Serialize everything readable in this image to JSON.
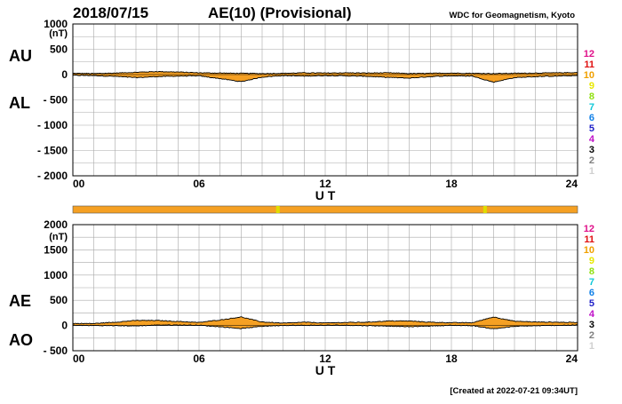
{
  "header": {
    "date": "2018/07/15",
    "title": "AE(10) (Provisional)",
    "source": "WDC for Geomagnetism, Kyoto"
  },
  "footer": {
    "created": "[Created at 2022-07-21 09:34UT]"
  },
  "colors": {
    "fill": "#f5a023",
    "line": "#000000",
    "grid": "#a8a8a8",
    "status_bar": "#f5a023",
    "status_marks": "#dddd00"
  },
  "station_legend": [
    {
      "label": "12",
      "color": "#e0108a"
    },
    {
      "label": "11",
      "color": "#e01010"
    },
    {
      "label": "10",
      "color": "#f0a000"
    },
    {
      "label": "9",
      "color": "#e8e800"
    },
    {
      "label": "8",
      "color": "#90e010"
    },
    {
      "label": "7",
      "color": "#10c8d8"
    },
    {
      "label": "6",
      "color": "#1080e8"
    },
    {
      "label": "5",
      "color": "#2020c8"
    },
    {
      "label": "4",
      "color": "#c010c8"
    },
    {
      "label": "3",
      "color": "#000000"
    },
    {
      "label": "2",
      "color": "#808080"
    },
    {
      "label": "1",
      "color": "#d0d0d0"
    }
  ],
  "status_bar": {
    "color": "#f5a023",
    "marks_ut_hours": [
      9.75,
      19.6
    ]
  },
  "chart_data": [
    {
      "type": "area",
      "panel": "AU/AL",
      "series_labels": [
        "AU",
        "AL"
      ],
      "unit": "(nT)",
      "xlabel": "U T",
      "xlim": [
        0,
        24
      ],
      "ylim": [
        -2000,
        1000
      ],
      "x_ticks": [
        "00",
        "06",
        "12",
        "18",
        "24"
      ],
      "y_ticks": [
        "1000",
        "500",
        "0",
        "- 500",
        "- 1000",
        "- 1500",
        "- 2000"
      ],
      "grid": true,
      "hours": [
        0,
        1,
        2,
        3,
        4,
        5,
        6,
        7,
        8,
        9,
        10,
        11,
        12,
        13,
        14,
        15,
        16,
        17,
        18,
        19,
        20,
        21,
        22,
        23,
        24
      ],
      "AU": [
        25,
        20,
        30,
        45,
        60,
        50,
        35,
        30,
        25,
        20,
        25,
        35,
        30,
        35,
        30,
        35,
        20,
        25,
        30,
        25,
        20,
        25,
        30,
        35,
        40
      ],
      "AL": [
        -15,
        -20,
        -35,
        -60,
        -40,
        -30,
        -25,
        -80,
        -140,
        -50,
        -20,
        -30,
        -20,
        -25,
        -35,
        -55,
        -70,
        -40,
        -25,
        -30,
        -150,
        -60,
        -40,
        -30,
        -20
      ]
    },
    {
      "type": "area",
      "panel": "AE/AO",
      "series_labels": [
        "AE",
        "AO"
      ],
      "unit": "(nT)",
      "xlabel": "U T",
      "xlim": [
        0,
        24
      ],
      "ylim": [
        -500,
        2000
      ],
      "x_ticks": [
        "00",
        "06",
        "12",
        "18",
        "24"
      ],
      "y_ticks": [
        "2000",
        "1500",
        "1000",
        "500",
        "0",
        "- 500"
      ],
      "grid": true,
      "hours": [
        0,
        1,
        2,
        3,
        4,
        5,
        6,
        7,
        8,
        9,
        10,
        11,
        12,
        13,
        14,
        15,
        16,
        17,
        18,
        19,
        20,
        21,
        22,
        23,
        24
      ],
      "AE": [
        40,
        40,
        65,
        100,
        100,
        80,
        60,
        110,
        170,
        70,
        45,
        65,
        50,
        60,
        65,
        90,
        90,
        65,
        55,
        55,
        170,
        85,
        70,
        65,
        60
      ],
      "AO": [
        5,
        0,
        -3,
        -8,
        10,
        10,
        5,
        -25,
        -60,
        -15,
        3,
        3,
        5,
        5,
        -3,
        -10,
        -25,
        -8,
        3,
        -3,
        -65,
        -18,
        -5,
        3,
        10
      ]
    }
  ]
}
